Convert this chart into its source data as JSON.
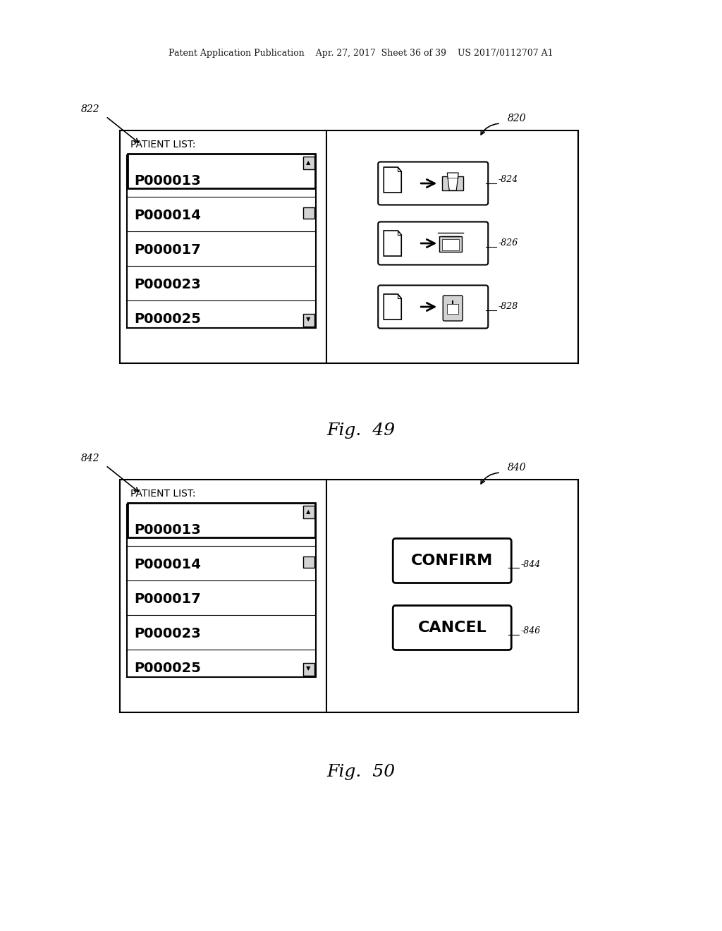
{
  "bg_color": "#ffffff",
  "header_text": "Patent Application Publication    Apr. 27, 2017  Sheet 36 of 39    US 2017/0112707 A1",
  "fig49_label": "Fig.  49",
  "fig50_label": "Fig.  50",
  "patient_list_label": "PATIENT LIST:",
  "patient_ids": [
    "P000013",
    "P000014",
    "P000017",
    "P000023",
    "P000025"
  ],
  "fig49_ref_nums": [
    "820",
    "822",
    "824",
    "826",
    "828"
  ],
  "fig50_ref_nums": [
    "840",
    "842",
    "844",
    "846"
  ],
  "confirm_text": "CONFIRM",
  "cancel_text": "CANCEL"
}
